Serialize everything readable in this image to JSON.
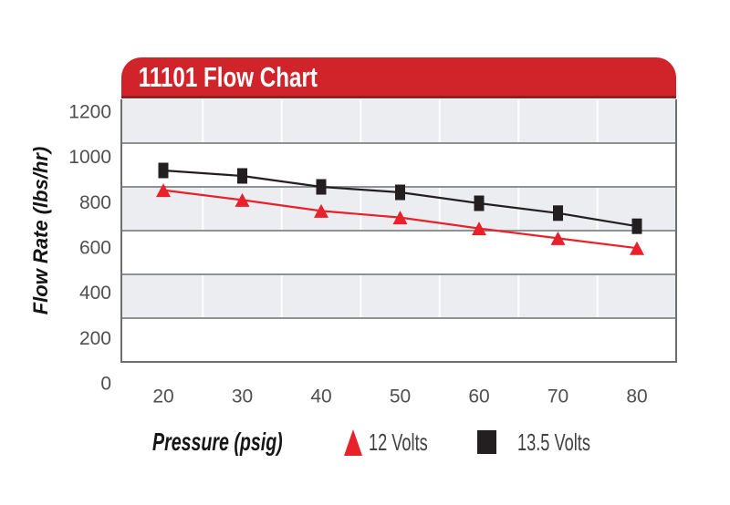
{
  "header": {
    "title": "11101 Flow Chart"
  },
  "colors": {
    "banner_red": "#d0232a",
    "banner_edge_dark_red": "#8e1f24",
    "series_red": "#e8212a",
    "series_black": "#231f20",
    "band_gray": "#ecedf1",
    "h_gridline": "#8f9194",
    "v_gridline": "#ffffff",
    "plot_border": "#6d6e71",
    "tick_text": "#4e4f51",
    "title_text": "#ffffff"
  },
  "chart_data": {
    "type": "line",
    "title": "11101 Flow Chart",
    "xlabel": "Pressure (psig)",
    "ylabel": "Flow Rate (lbs/hr)",
    "categories": [
      "20",
      "30",
      "40",
      "50",
      "60",
      "70",
      "80"
    ],
    "y_ticks": [
      "1200",
      "1000",
      "800",
      "600",
      "400",
      "200",
      "0"
    ],
    "ylim": [
      0,
      1200
    ],
    "y_tick_step": 200,
    "grid": "alternating horizontal gray/white bands with vertical white column separators",
    "legend_position": "bottom",
    "series": [
      {
        "name": "13.5 Volts",
        "marker": "square",
        "color": "#231f20",
        "values": [
          875,
          850,
          800,
          775,
          725,
          680,
          620
        ]
      },
      {
        "name": "12 Volts",
        "marker": "triangle",
        "color": "#e8212a",
        "values": [
          785,
          740,
          690,
          660,
          610,
          565,
          520
        ]
      }
    ]
  }
}
